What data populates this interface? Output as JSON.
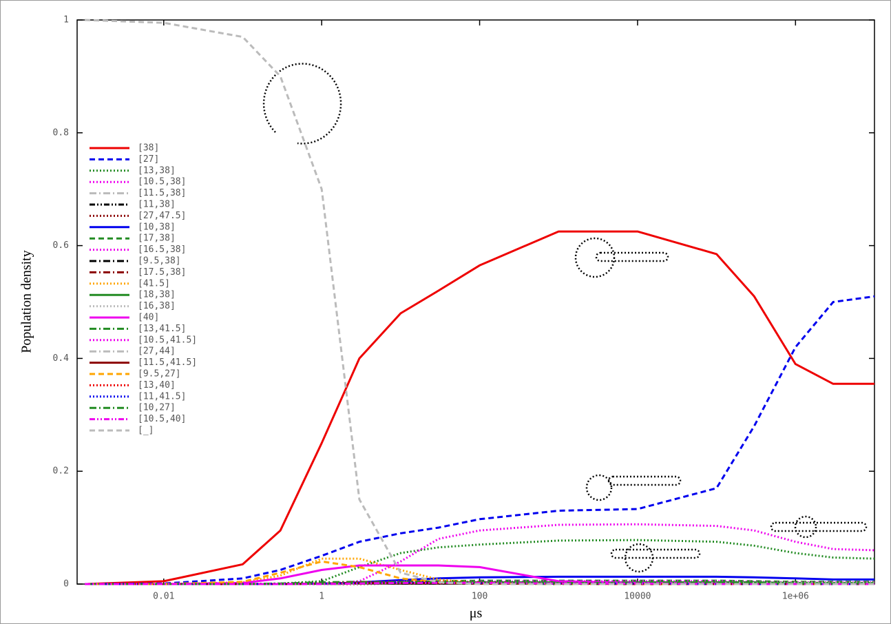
{
  "chart_data": {
    "type": "line",
    "x_label": "μs",
    "y_label": "Population density",
    "xscale": "log",
    "xlim": [
      0.0008,
      10000000
    ],
    "ylim": [
      0,
      1
    ],
    "xticks": [
      0.01,
      1,
      100,
      10000,
      {
        "value": 1000000,
        "label": "1e+06"
      }
    ],
    "yticks": [
      0,
      0.2,
      0.4,
      0.6,
      0.8,
      1
    ],
    "x": [
      0.001,
      0.01,
      0.1,
      0.3,
      1,
      3,
      10,
      30,
      100,
      1000,
      10000,
      100000,
      300000,
      1000000,
      3000000,
      10000000
    ],
    "series": [
      {
        "name": "[38]",
        "color": "#ee0000",
        "dash": "solid",
        "values": [
          0,
          0.005,
          0.035,
          0.095,
          0.25,
          0.4,
          0.48,
          0.52,
          0.565,
          0.625,
          0.625,
          0.585,
          0.51,
          0.39,
          0.355,
          0.355
        ]
      },
      {
        "name": "[27]",
        "color": "#0000ee",
        "dash": "dashed",
        "values": [
          0,
          0.001,
          0.01,
          0.025,
          0.05,
          0.075,
          0.09,
          0.1,
          0.115,
          0.13,
          0.133,
          0.17,
          0.28,
          0.42,
          0.5,
          0.51
        ]
      },
      {
        "name": "[13,38]",
        "color": "#228b22",
        "dash": "dotted",
        "values": [
          0,
          0,
          0,
          0.001,
          0.005,
          0.03,
          0.055,
          0.065,
          0.07,
          0.077,
          0.078,
          0.075,
          0.068,
          0.055,
          0.047,
          0.045
        ]
      },
      {
        "name": "[10.5,38]",
        "color": "#ee00ee",
        "dash": "dotted",
        "values": [
          0,
          0,
          0,
          0,
          0,
          0.005,
          0.04,
          0.08,
          0.095,
          0.105,
          0.106,
          0.103,
          0.095,
          0.075,
          0.062,
          0.06
        ]
      },
      {
        "name": "[11.5,38]",
        "color": "#bbbbbb",
        "dash": "dashdot",
        "values": [
          0,
          0,
          0,
          0,
          0,
          0.001,
          0.002,
          0.002,
          0.002,
          0.002,
          0.002,
          0.002,
          0.002,
          0.002,
          0.002,
          0.002
        ]
      },
      {
        "name": "[11,38]",
        "color": "#000000",
        "dash": "dashdotdot",
        "values": [
          0,
          0,
          0,
          0,
          0,
          0.001,
          0.002,
          0.002,
          0.002,
          0.002,
          0.002,
          0.002,
          0.002,
          0.001,
          0.001,
          0.001
        ]
      },
      {
        "name": "[27,47.5]",
        "color": "#8b0000",
        "dash": "dotted",
        "values": [
          0,
          0,
          0,
          0,
          0,
          0,
          0.001,
          0.001,
          0.001,
          0.001,
          0.001,
          0.001,
          0.002,
          0.002,
          0.002,
          0.002
        ]
      },
      {
        "name": "[10,38]",
        "color": "#0000ee",
        "dash": "solid",
        "values": [
          0,
          0,
          0,
          0,
          0,
          0.003,
          0.007,
          0.01,
          0.012,
          0.013,
          0.013,
          0.013,
          0.012,
          0.01,
          0.008,
          0.008
        ]
      },
      {
        "name": "[17,38]",
        "color": "#228b22",
        "dash": "dashed",
        "values": [
          0,
          0,
          0,
          0,
          0,
          0.002,
          0.004,
          0.005,
          0.006,
          0.006,
          0.006,
          0.006,
          0.005,
          0.004,
          0.004,
          0.004
        ]
      },
      {
        "name": "[16.5,38]",
        "color": "#ee00ee",
        "dash": "dotted",
        "values": [
          0,
          0,
          0,
          0,
          0,
          0.001,
          0.003,
          0.004,
          0.004,
          0.005,
          0.005,
          0.005,
          0.004,
          0.003,
          0.003,
          0.003
        ]
      },
      {
        "name": "[9.5,38]",
        "color": "#000000",
        "dash": "dashdot",
        "values": [
          0,
          0,
          0,
          0,
          0,
          0.001,
          0.001,
          0.001,
          0.001,
          0.001,
          0.001,
          0.001,
          0.001,
          0.001,
          0.001,
          0.001
        ]
      },
      {
        "name": "[17.5,38]",
        "color": "#8b0000",
        "dash": "dashdot",
        "values": [
          0,
          0,
          0,
          0,
          0,
          0.001,
          0.002,
          0.002,
          0.002,
          0.002,
          0.002,
          0.002,
          0.002,
          0.002,
          0.002,
          0.002
        ]
      },
      {
        "name": "[41.5]",
        "color": "#ffa500",
        "dash": "dotted",
        "values": [
          0,
          0,
          0.003,
          0.015,
          0.045,
          0.045,
          0.025,
          0.008,
          0.002,
          0,
          0,
          0,
          0,
          0,
          0,
          0
        ]
      },
      {
        "name": "[18,38]",
        "color": "#228b22",
        "dash": "solid",
        "values": [
          0,
          0,
          0,
          0,
          0,
          0.001,
          0.002,
          0.003,
          0.003,
          0.003,
          0.003,
          0.003,
          0.003,
          0.002,
          0.002,
          0.002
        ]
      },
      {
        "name": "[16,38]",
        "color": "#bbbbbb",
        "dash": "dotted",
        "values": [
          0,
          0,
          0,
          0,
          0,
          0.001,
          0.002,
          0.002,
          0.002,
          0.002,
          0.002,
          0.002,
          0.002,
          0.002,
          0.002,
          0.002
        ]
      },
      {
        "name": "[40]",
        "color": "#ee00ee",
        "dash": "solid",
        "values": [
          0,
          0,
          0.002,
          0.01,
          0.025,
          0.033,
          0.033,
          0.033,
          0.03,
          0.005,
          0.002,
          0.001,
          0,
          0,
          0,
          0
        ]
      },
      {
        "name": "[13,41.5]",
        "color": "#228b22",
        "dash": "dashdot",
        "values": [
          0,
          0,
          0,
          0.001,
          0.003,
          0.004,
          0.003,
          0.002,
          0.001,
          0,
          0,
          0,
          0,
          0,
          0,
          0
        ]
      },
      {
        "name": "[10.5,41.5]",
        "color": "#ee00ee",
        "dash": "dotted",
        "values": [
          0,
          0,
          0,
          0,
          0.001,
          0.003,
          0.004,
          0.003,
          0.002,
          0.001,
          0,
          0,
          0,
          0,
          0,
          0
        ]
      },
      {
        "name": "[27,44]",
        "color": "#bbbbbb",
        "dash": "dashdot",
        "values": [
          0,
          0,
          0,
          0,
          0,
          0.001,
          0.002,
          0.002,
          0.001,
          0.001,
          0.001,
          0.001,
          0.001,
          0.001,
          0.001,
          0.001
        ]
      },
      {
        "name": "[11.5,41.5]",
        "color": "#8b0000",
        "dash": "solid",
        "values": [
          0,
          0,
          0,
          0,
          0.001,
          0.002,
          0.002,
          0.002,
          0.001,
          0.001,
          0,
          0,
          0,
          0,
          0,
          0
        ]
      },
      {
        "name": "[9.5,27]",
        "color": "#ffa500",
        "dash": "dashed",
        "values": [
          0,
          0,
          0.004,
          0.02,
          0.04,
          0.03,
          0.01,
          0.003,
          0.001,
          0,
          0,
          0,
          0,
          0,
          0,
          0
        ]
      },
      {
        "name": "[13,40]",
        "color": "#ee0000",
        "dash": "dotted",
        "values": [
          0,
          0,
          0,
          0,
          0.001,
          0.003,
          0.004,
          0.004,
          0.003,
          0.001,
          0,
          0,
          0,
          0,
          0,
          0
        ]
      },
      {
        "name": "[11,41.5]",
        "color": "#0000ee",
        "dash": "dotted",
        "values": [
          0,
          0,
          0,
          0,
          0.001,
          0.002,
          0.003,
          0.003,
          0.002,
          0.001,
          0.001,
          0,
          0,
          0,
          0,
          0
        ]
      },
      {
        "name": "[10,27]",
        "color": "#228b22",
        "dash": "dashdot",
        "values": [
          0,
          0,
          0,
          0,
          0.001,
          0.002,
          0.003,
          0.003,
          0.003,
          0.002,
          0.002,
          0.002,
          0.002,
          0.001,
          0.001,
          0.001
        ]
      },
      {
        "name": "[10.5,40]",
        "color": "#ee00ee",
        "dash": "dashdotdot",
        "values": [
          0,
          0,
          0,
          0,
          0,
          0.001,
          0.002,
          0.002,
          0.002,
          0.001,
          0.001,
          0,
          0,
          0,
          0,
          0
        ]
      },
      {
        "name": "[_]",
        "color": "#bbbbbb",
        "dash": "dashed",
        "values": [
          1,
          0.995,
          0.97,
          0.9,
          0.7,
          0.15,
          0.02,
          0.003,
          0,
          0,
          0,
          0,
          0,
          0,
          0,
          0
        ]
      }
    ]
  }
}
